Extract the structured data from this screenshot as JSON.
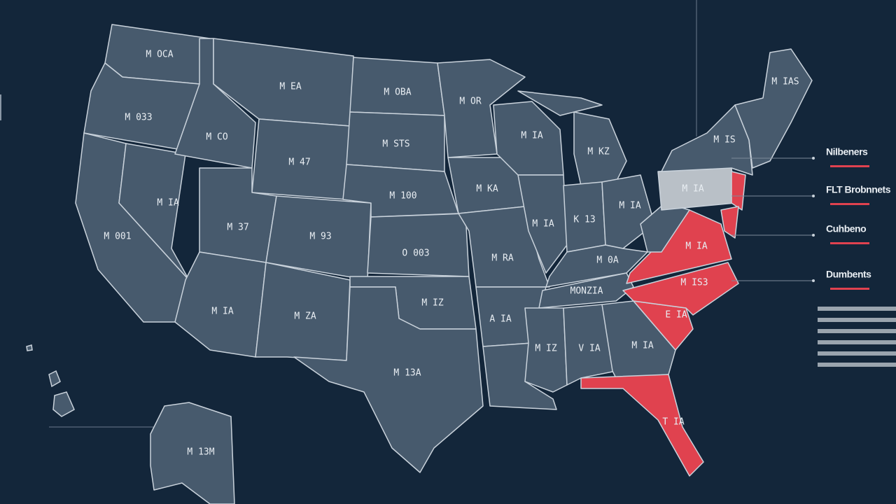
{
  "map": {
    "states": [
      {
        "label": "M OCA"
      },
      {
        "label": "M 033"
      },
      {
        "label": "M 001"
      },
      {
        "label": "M IA"
      },
      {
        "label": "M CO"
      },
      {
        "label": "M EA"
      },
      {
        "label": "M 47"
      },
      {
        "label": "M 37"
      },
      {
        "label": "M IA"
      },
      {
        "label": "M 93"
      },
      {
        "label": "M ZA"
      },
      {
        "label": "M OBA"
      },
      {
        "label": "M STS"
      },
      {
        "label": "M 100"
      },
      {
        "label": "O 003"
      },
      {
        "label": "M IZ"
      },
      {
        "label": "M 13A"
      },
      {
        "label": "M OR"
      },
      {
        "label": "M KA"
      },
      {
        "label": "M RA"
      },
      {
        "label": "A IA"
      },
      {
        "label": null
      },
      {
        "label": "M IA"
      },
      {
        "label": "M KZ"
      },
      {
        "label": null
      },
      {
        "label": "M IA"
      },
      {
        "label": "K 13"
      },
      {
        "label": "M IA"
      },
      {
        "label": "M 0A"
      },
      {
        "label": "MONZIA"
      },
      {
        "label": "M IZ"
      },
      {
        "label": "V IA"
      },
      {
        "label": "M IA"
      },
      {
        "label": "T IA"
      },
      {
        "label": "E IA"
      },
      {
        "label": "M IS3"
      },
      {
        "label": "M IA"
      },
      {
        "label": null
      },
      {
        "label": "M IA"
      },
      {
        "label": "M IS"
      },
      {
        "label": null
      },
      {
        "label": null
      },
      {
        "label": "M IAS"
      },
      {
        "label": "M 13M"
      }
    ],
    "legend": [
      "Nilbeners",
      "FLT Brobnnets",
      "Cuhbeno",
      "Dumbents"
    ]
  }
}
